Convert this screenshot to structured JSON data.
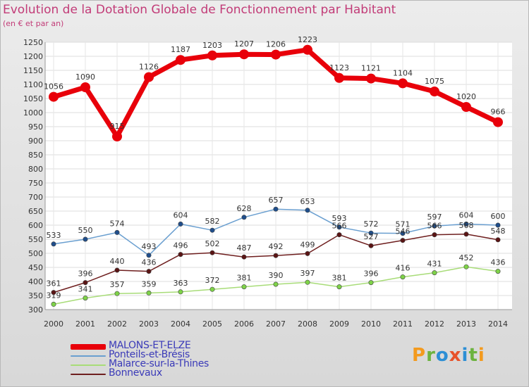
{
  "title": "Evolution de la Dotation Globale de Fonctionnement par Habitant",
  "subtitle": "(en € et par an)",
  "logo": {
    "text": "Proxiti",
    "letters": [
      {
        "ch": "P",
        "color": "#f39a1e"
      },
      {
        "ch": "r",
        "color": "#6cb33f"
      },
      {
        "ch": "o",
        "color": "#2d8fd5"
      },
      {
        "ch": "x",
        "color": "#e8532b"
      },
      {
        "ch": "i",
        "color": "#2d8fd5"
      },
      {
        "ch": "t",
        "color": "#6cb33f"
      },
      {
        "ch": "i",
        "color": "#f39a1e"
      }
    ]
  },
  "chart_data": {
    "type": "line",
    "title": "Evolution de la Dotation Globale de Fonctionnement par Habitant",
    "subtitle": "(en € et par an)",
    "xlabel": "",
    "ylabel": "",
    "x": [
      "2000",
      "2001",
      "2002",
      "2003",
      "2004",
      "2005",
      "2006",
      "2007",
      "2008",
      "2009",
      "2010",
      "2011",
      "2012",
      "2013",
      "2014"
    ],
    "ylim": [
      300,
      1250
    ],
    "yticks": [
      300,
      350,
      400,
      450,
      500,
      550,
      600,
      650,
      700,
      750,
      800,
      850,
      900,
      950,
      1000,
      1050,
      1100,
      1150,
      1200,
      1250
    ],
    "grid": true,
    "legend": "bottom-left",
    "series": [
      {
        "name": "MALONS-ET-ELZE",
        "color": "#e8000a",
        "marker": "#e8000a",
        "values": [
          1056,
          1090,
          915,
          1126,
          1187,
          1203,
          1207,
          1206,
          1223,
          1123,
          1121,
          1104,
          1075,
          1020,
          966
        ]
      },
      {
        "name": "Ponteils-et-Brésis",
        "color": "#6a9fd0",
        "marker": "#1f4e8c",
        "values": [
          533,
          550,
          574,
          493,
          604,
          582,
          628,
          657,
          653,
          593,
          572,
          571,
          597,
          604,
          600
        ]
      },
      {
        "name": "Malarce-sur-la-Thines",
        "color": "#a8dc78",
        "marker": "#7ed348",
        "values": [
          319,
          341,
          357,
          359,
          363,
          372,
          381,
          390,
          397,
          381,
          396,
          416,
          431,
          452,
          436
        ]
      },
      {
        "name": "Bonnevaux",
        "color": "#6e1e1e",
        "marker": "#5a1414",
        "values": [
          361,
          396,
          440,
          436,
          496,
          502,
          487,
          492,
          499,
          566,
          527,
          546,
          566,
          568,
          548
        ]
      }
    ]
  }
}
